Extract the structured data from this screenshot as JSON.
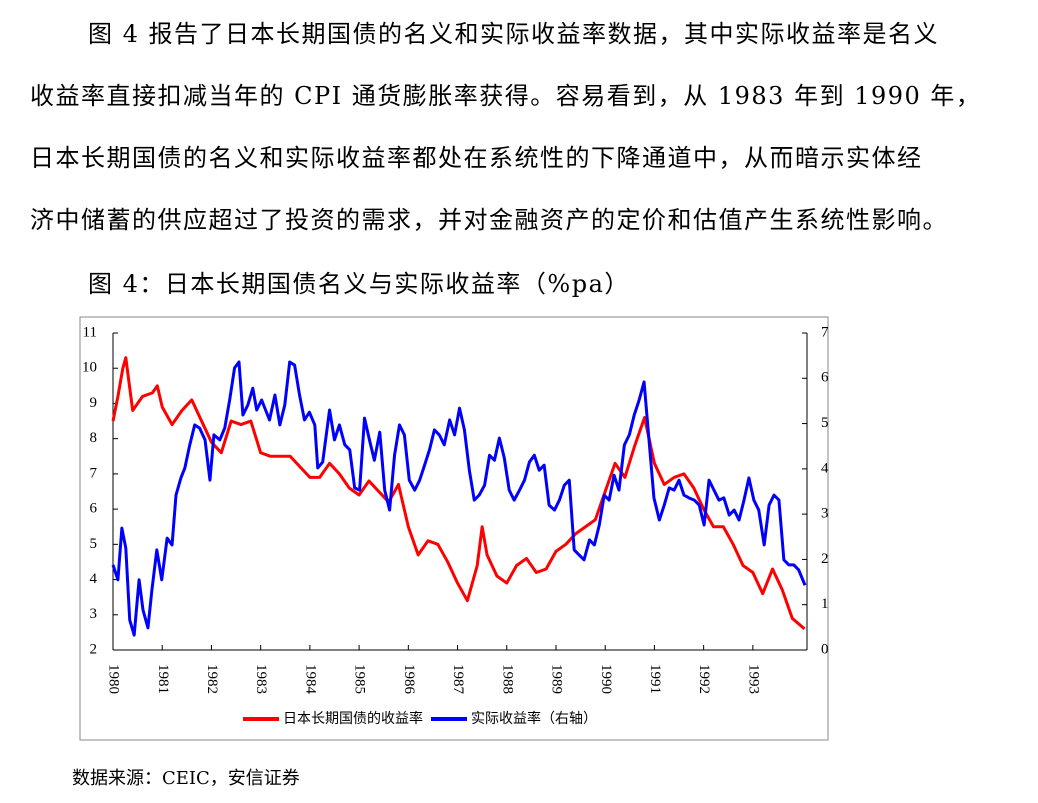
{
  "paragraph": [
    "图 4 报告了日本长期国债的名义和实际收益率数据，其中实际收益率是名义",
    "收益率直接扣减当年的 CPI 通货膨胀率获得。容易看到，从 1983 年到 1990 年，",
    "日本长期国债的名义和实际收益率都处在系统性的下降通道中，从而暗示实体经",
    "济中储蓄的供应超过了投资的需求，并对金融资产的定价和估值产生系统性影响。"
  ],
  "figure": {
    "caption": "图 4：日本长期国债名义与实际收益率（%pa）",
    "source": "数据来源：CEIC，安信证券",
    "chart_data": {
      "type": "line",
      "xlim": [
        1980,
        1994.1
      ],
      "xticks": [
        1980,
        1981,
        1982,
        1983,
        1984,
        1985,
        1986,
        1987,
        1988,
        1989,
        1990,
        1991,
        1992,
        1993
      ],
      "ylim": [
        2,
        11
      ],
      "yticks": [
        2,
        3,
        4,
        5,
        6,
        7,
        8,
        9,
        10,
        11
      ],
      "y2lim": [
        0,
        7
      ],
      "y2ticks": [
        0,
        1,
        2,
        3,
        4,
        5,
        6,
        7
      ],
      "legend": "bottom",
      "series": [
        {
          "name": "日本长期国债的收益率",
          "color": "#ff0000",
          "x": [
            1980.0,
            1980.1,
            1980.2,
            1980.26,
            1980.4,
            1980.6,
            1980.8,
            1980.9,
            1981.0,
            1981.2,
            1981.4,
            1981.6,
            1981.8,
            1982.0,
            1982.2,
            1982.4,
            1982.6,
            1982.8,
            1983.0,
            1983.2,
            1983.4,
            1983.6,
            1983.8,
            1984.0,
            1984.2,
            1984.4,
            1984.6,
            1984.8,
            1985.0,
            1985.2,
            1985.4,
            1985.6,
            1985.8,
            1986.0,
            1986.2,
            1986.4,
            1986.6,
            1986.8,
            1987.0,
            1987.2,
            1987.4,
            1987.5,
            1987.6,
            1987.8,
            1988.0,
            1988.2,
            1988.4,
            1988.6,
            1988.8,
            1989.0,
            1989.2,
            1989.4,
            1989.6,
            1989.8,
            1990.0,
            1990.2,
            1990.4,
            1990.6,
            1990.8,
            1991.0,
            1991.2,
            1991.4,
            1991.6,
            1991.8,
            1992.0,
            1992.2,
            1992.4,
            1992.6,
            1992.8,
            1993.0,
            1993.2,
            1993.4,
            1993.6,
            1993.8,
            1994.05
          ],
          "values": [
            8.5,
            9.2,
            10.0,
            10.3,
            8.8,
            9.2,
            9.3,
            9.5,
            8.9,
            8.4,
            8.8,
            9.1,
            8.5,
            7.9,
            7.6,
            8.5,
            8.4,
            8.5,
            7.6,
            7.5,
            7.5,
            7.5,
            7.2,
            6.9,
            6.9,
            7.3,
            7.0,
            6.6,
            6.4,
            6.8,
            6.5,
            6.2,
            6.7,
            5.5,
            4.7,
            5.1,
            5.0,
            4.5,
            3.9,
            3.4,
            4.4,
            5.5,
            4.7,
            4.1,
            3.9,
            4.4,
            4.6,
            4.2,
            4.3,
            4.8,
            5.0,
            5.3,
            5.5,
            5.7,
            6.5,
            7.3,
            6.9,
            7.8,
            8.6,
            7.3,
            6.7,
            6.9,
            7.0,
            6.6,
            6.0,
            5.5,
            5.5,
            5.0,
            4.4,
            4.2,
            3.6,
            4.3,
            3.7,
            2.9,
            2.6
          ]
        },
        {
          "name": "实际收益率（右轴）",
          "color": "#0000ff",
          "axis": "y2",
          "x": [
            1980.0,
            1980.1,
            1980.18,
            1980.26,
            1980.34,
            1980.43,
            1980.53,
            1980.61,
            1980.71,
            1980.79,
            1980.89,
            1980.99,
            1981.1,
            1981.2,
            1981.28,
            1981.38,
            1981.46,
            1981.56,
            1981.66,
            1981.76,
            1981.87,
            1981.97,
            1982.05,
            1982.17,
            1982.27,
            1982.37,
            1982.47,
            1982.56,
            1982.64,
            1982.74,
            1982.84,
            1982.92,
            1983.02,
            1983.1,
            1983.18,
            1983.29,
            1983.39,
            1983.49,
            1983.59,
            1983.69,
            1983.79,
            1983.89,
            1983.99,
            1984.1,
            1984.16,
            1984.26,
            1984.4,
            1984.5,
            1984.6,
            1984.71,
            1984.81,
            1984.91,
            1985.01,
            1985.11,
            1985.21,
            1985.31,
            1985.42,
            1985.52,
            1985.62,
            1985.72,
            1985.82,
            1985.92,
            1986.02,
            1986.13,
            1986.23,
            1986.33,
            1986.43,
            1986.53,
            1986.63,
            1986.73,
            1986.84,
            1986.94,
            1987.04,
            1987.14,
            1987.24,
            1987.34,
            1987.44,
            1987.55,
            1987.65,
            1987.75,
            1987.85,
            1987.95,
            1988.05,
            1988.15,
            1988.26,
            1988.36,
            1988.46,
            1988.56,
            1988.66,
            1988.76,
            1988.86,
            1988.97,
            1989.07,
            1989.17,
            1989.27,
            1989.37,
            1989.47,
            1989.57,
            1989.68,
            1989.78,
            1989.88,
            1989.98,
            1990.08,
            1990.18,
            1990.28,
            1990.39,
            1990.49,
            1990.59,
            1990.69,
            1990.79,
            1990.89,
            1990.99,
            1991.1,
            1991.2,
            1991.3,
            1991.4,
            1991.5,
            1991.6,
            1991.7,
            1991.81,
            1991.91,
            1992.01,
            1992.11,
            1992.21,
            1992.31,
            1992.41,
            1992.52,
            1992.62,
            1992.72,
            1992.82,
            1992.92,
            1993.02,
            1993.12,
            1993.23,
            1993.33,
            1993.43,
            1993.53,
            1993.63,
            1993.73,
            1993.83,
            1993.93,
            1994.06
          ],
          "values": [
            1.88,
            1.55,
            2.69,
            2.25,
            0.66,
            0.33,
            1.55,
            0.88,
            0.49,
            1.32,
            2.21,
            1.55,
            2.47,
            2.32,
            3.42,
            3.8,
            4.02,
            4.53,
            4.97,
            4.9,
            4.64,
            3.75,
            4.75,
            4.64,
            4.9,
            5.52,
            6.23,
            6.36,
            5.19,
            5.41,
            5.78,
            5.3,
            5.52,
            5.3,
            5.08,
            5.63,
            4.97,
            5.41,
            6.36,
            6.29,
            5.63,
            5.08,
            5.25,
            4.97,
            4.02,
            4.15,
            5.3,
            4.64,
            4.97,
            4.53,
            4.42,
            3.58,
            3.53,
            5.12,
            4.64,
            4.19,
            4.81,
            3.53,
            3.09,
            4.3,
            4.97,
            4.75,
            3.75,
            3.53,
            3.75,
            4.08,
            4.42,
            4.86,
            4.75,
            4.53,
            5.08,
            4.75,
            5.34,
            4.86,
            3.97,
            3.31,
            3.42,
            3.64,
            4.3,
            4.19,
            4.68,
            4.24,
            3.53,
            3.31,
            3.53,
            3.75,
            4.15,
            4.3,
            3.97,
            4.08,
            3.2,
            3.09,
            3.31,
            3.64,
            3.75,
            2.21,
            2.1,
            1.99,
            2.43,
            2.32,
            2.76,
            3.42,
            3.31,
            3.86,
            3.53,
            4.53,
            4.75,
            5.19,
            5.52,
            5.92,
            4.64,
            3.36,
            2.87,
            3.2,
            3.58,
            3.53,
            3.75,
            3.42,
            3.36,
            3.31,
            3.2,
            2.76,
            3.75,
            3.53,
            3.31,
            3.36,
            2.98,
            3.09,
            2.87,
            3.31,
            3.8,
            3.31,
            3.09,
            2.32,
            3.2,
            3.42,
            3.31,
            1.99,
            1.88,
            1.88,
            1.77,
            1.43
          ]
        }
      ]
    }
  }
}
